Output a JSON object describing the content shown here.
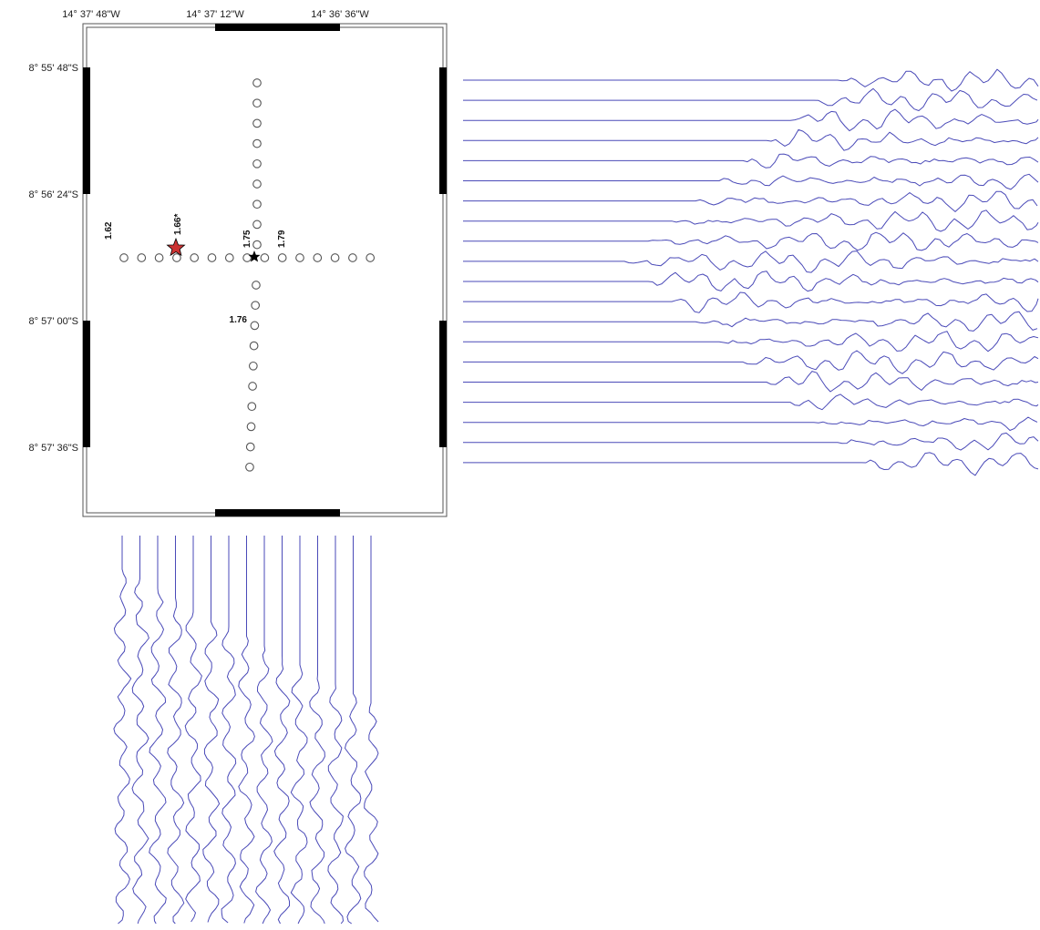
{
  "map": {
    "lon_labels": [
      "14° 37' 48\"W",
      "14° 37' 12\"W",
      "14° 36' 36\"W"
    ],
    "lat_labels": [
      "8° 55' 48\"S",
      "8° 56' 24\"S",
      "8° 57' 00\"S",
      "8° 57' 36\"S"
    ],
    "values": {
      "west_end": "1.62",
      "source": "1.66*",
      "cross_left": "1.75",
      "cross_right": "1.79",
      "south_arm": "1.76"
    },
    "receiver_count": {
      "horizontal_line": 15,
      "vertical_line": 20
    },
    "source_marker": "star-icon",
    "cross_marker": "black-star-icon"
  },
  "seismograms": {
    "trace_color": "#4a4ab8",
    "source_color": "#cc3333",
    "right_panel_trace_count": 20,
    "bottom_panel_trace_count": 15
  }
}
